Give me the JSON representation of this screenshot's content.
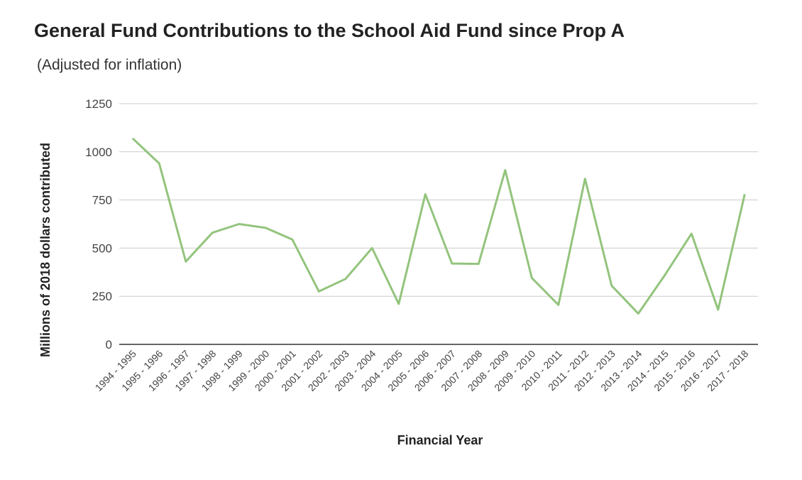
{
  "chart_data": {
    "type": "line",
    "title": "General Fund Contributions to the School Aid Fund since Prop A",
    "subtitle": "(Adjusted for inflation)",
    "xlabel": "Financial Year",
    "ylabel": "Millions of 2018 dollars contributed",
    "ylim": [
      0,
      1250
    ],
    "yticks": [
      0,
      250,
      500,
      750,
      1000,
      1250
    ],
    "grid": true,
    "line_color": "#93c47d",
    "categories": [
      "1994 - 1995",
      "1995 - 1996",
      "1996 - 1997",
      "1997 - 1998",
      "1998 - 1999",
      "1999 - 2000",
      "2000 - 2001",
      "2001 - 2002",
      "2002 - 2003",
      "2003 - 2004",
      "2004 - 2005",
      "2005 - 2006",
      "2006 - 2007",
      "2007 - 2008",
      "2008 - 2009",
      "2009 - 2010",
      "2010 - 2011",
      "2011 - 2012",
      "2012 - 2013",
      "2013 - 2014",
      "2014 - 2015",
      "2015 - 2016",
      "2016 - 2017",
      "2017 - 2018"
    ],
    "values": [
      1070,
      940,
      430,
      580,
      625,
      605,
      545,
      275,
      340,
      500,
      210,
      780,
      420,
      418,
      905,
      345,
      205,
      860,
      305,
      160,
      360,
      575,
      180,
      780
    ]
  }
}
